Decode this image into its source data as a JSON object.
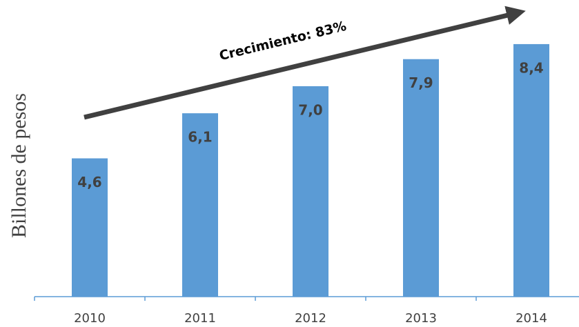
{
  "chart_data": {
    "type": "bar",
    "y_label": "Billones de pesos",
    "annotation": "Crecimiento: 83%",
    "categories": [
      "2010",
      "2011",
      "2012",
      "2013",
      "2014"
    ],
    "values": [
      4.6,
      6.1,
      7.0,
      7.9,
      8.4
    ],
    "value_labels": [
      "4,6",
      "6,1",
      "7,0",
      "7,9",
      "8,4"
    ],
    "color": "#5b9bd5",
    "ylim": [
      0,
      9.5
    ],
    "grid": false
  }
}
